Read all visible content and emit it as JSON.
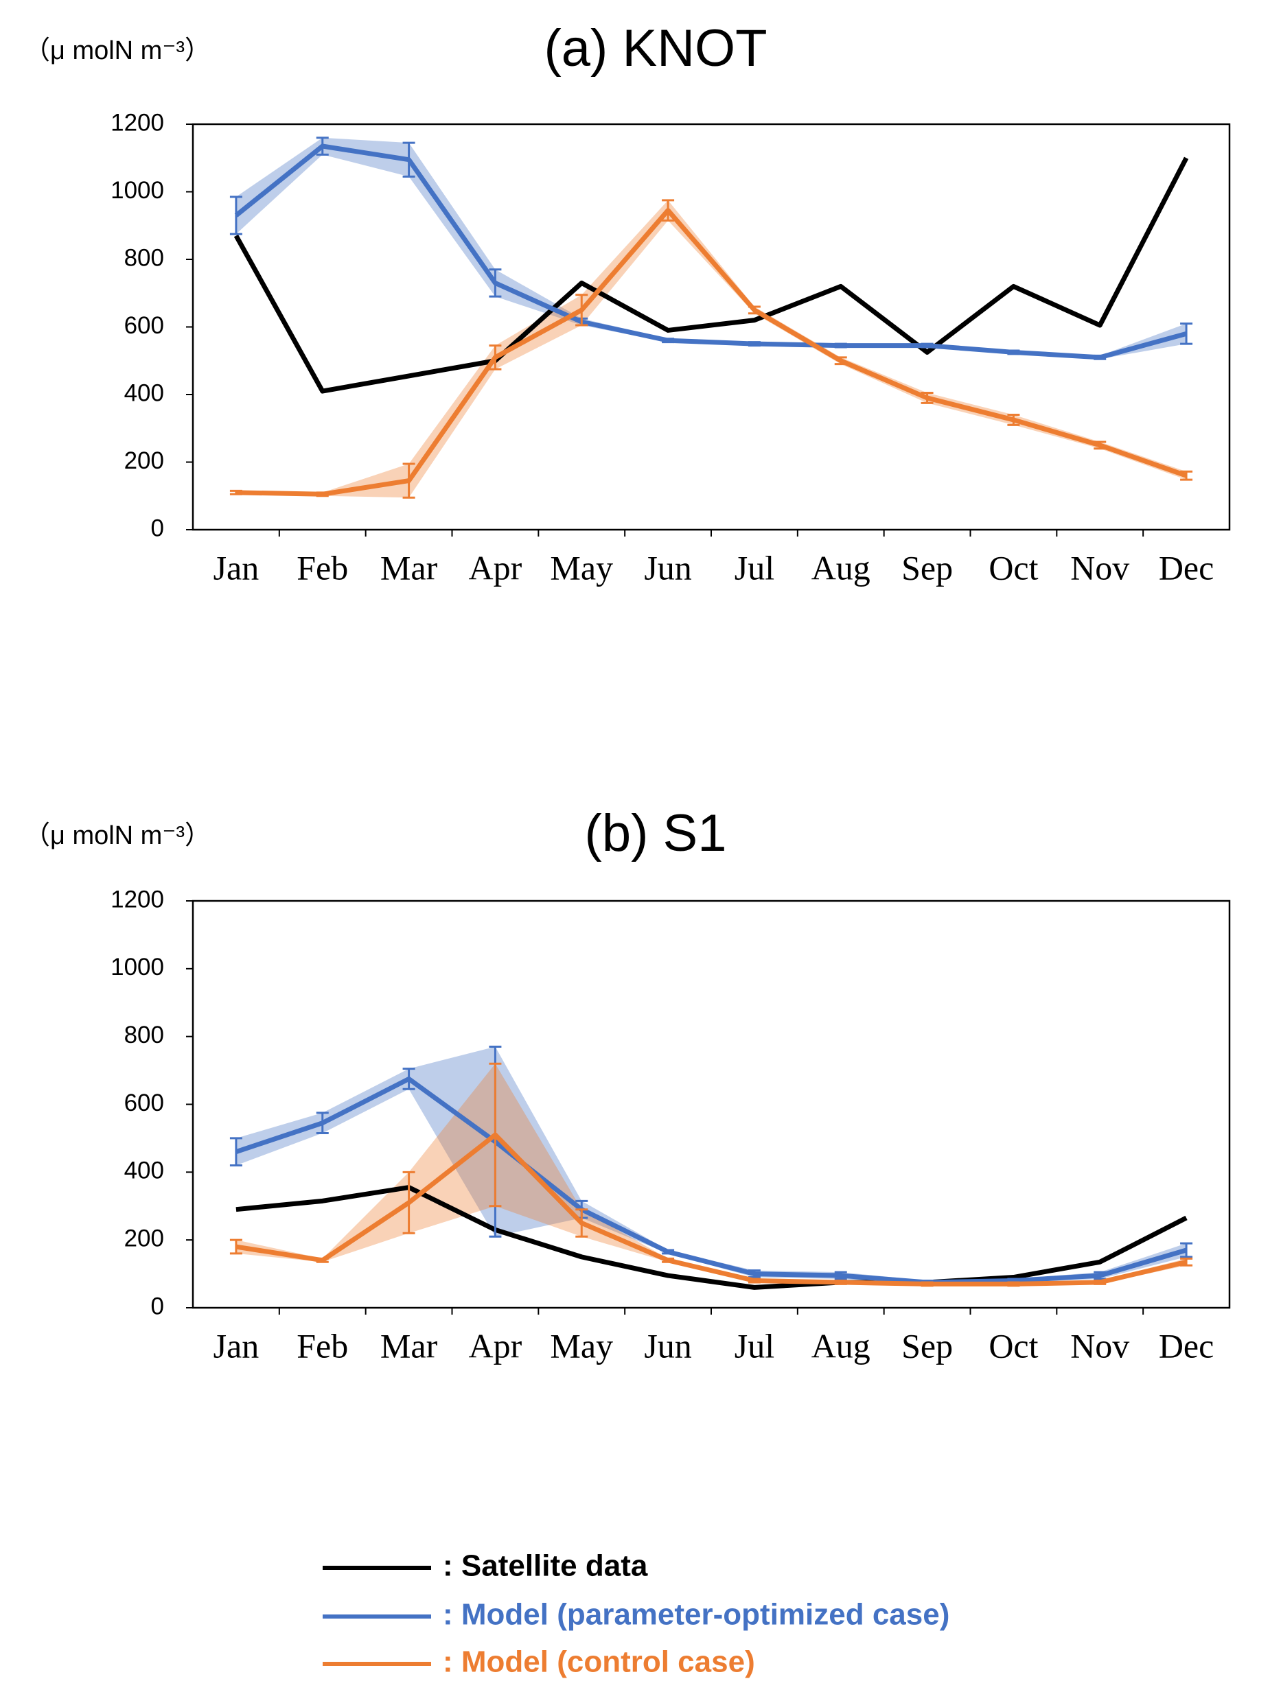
{
  "chart_data": [
    {
      "type": "line",
      "title": "(a) KNOT",
      "ylabel": "（μ molN m⁻³）",
      "categories": [
        "Jan",
        "Feb",
        "Mar",
        "Apr",
        "May",
        "Jun",
        "Jul",
        "Aug",
        "Sep",
        "Oct",
        "Nov",
        "Dec"
      ],
      "ylim": [
        0,
        1200
      ],
      "yticks": [
        0,
        200,
        400,
        600,
        800,
        1000,
        1200
      ],
      "series": [
        {
          "name": ": Satellite data",
          "color": "#000000",
          "values": [
            870,
            410,
            455,
            500,
            730,
            590,
            620,
            720,
            525,
            720,
            605,
            1100
          ]
        },
        {
          "name": ": Model (parameter-optimized case)",
          "color": "#4472c4",
          "values": [
            930,
            1135,
            1095,
            730,
            615,
            560,
            550,
            545,
            545,
            525,
            510,
            580
          ],
          "errors": [
            55,
            25,
            50,
            40,
            10,
            5,
            5,
            5,
            5,
            5,
            5,
            30
          ]
        },
        {
          "name": ": Model (control case)",
          "color": "#ed7d31",
          "values": [
            110,
            105,
            145,
            510,
            650,
            945,
            650,
            500,
            390,
            325,
            250,
            160
          ],
          "errors": [
            5,
            5,
            50,
            35,
            45,
            30,
            10,
            10,
            15,
            15,
            10,
            12
          ]
        }
      ]
    },
    {
      "type": "line",
      "title": "(b) S1",
      "ylabel": "（μ molN m⁻³）",
      "categories": [
        "Jan",
        "Feb",
        "Mar",
        "Apr",
        "May",
        "Jun",
        "Jul",
        "Aug",
        "Sep",
        "Oct",
        "Nov",
        "Dec"
      ],
      "ylim": [
        0,
        1200
      ],
      "yticks": [
        0,
        200,
        400,
        600,
        800,
        1000,
        1200
      ],
      "series": [
        {
          "color": "#000000",
          "values": [
            290,
            315,
            355,
            230,
            150,
            95,
            60,
            75,
            75,
            90,
            135,
            265
          ]
        },
        {
          "color": "#4472c4",
          "values": [
            460,
            545,
            675,
            490,
            290,
            165,
            100,
            95,
            75,
            80,
            95,
            170
          ],
          "errors": [
            40,
            30,
            30,
            280,
            25,
            5,
            10,
            10,
            5,
            5,
            10,
            20
          ]
        },
        {
          "color": "#ed7d31",
          "values": [
            180,
            140,
            310,
            510,
            250,
            140,
            80,
            75,
            70,
            70,
            75,
            135
          ],
          "errors": [
            20,
            5,
            90,
            210,
            40,
            5,
            5,
            5,
            5,
            5,
            5,
            10
          ]
        }
      ]
    }
  ]
}
